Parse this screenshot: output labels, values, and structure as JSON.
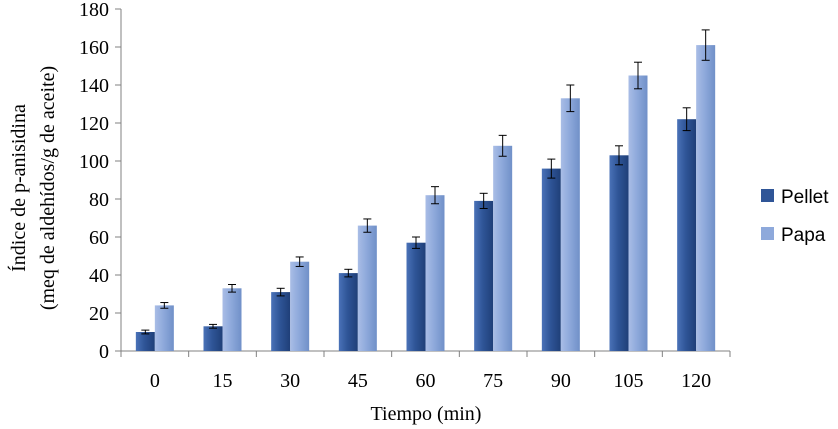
{
  "chart_data": {
    "type": "bar",
    "xlabel": "Tiempo (min)",
    "ylabel_line1": "Índice de p-anisidina",
    "ylabel_line2": "(meq de aldehídos/g de aceite)",
    "ylim": [
      0,
      180
    ],
    "yticks": [
      0,
      20,
      40,
      60,
      80,
      100,
      120,
      140,
      160,
      180
    ],
    "categories": [
      "0",
      "15",
      "30",
      "45",
      "60",
      "75",
      "90",
      "105",
      "120"
    ],
    "legend_position": "right",
    "grid": false,
    "error_bars": true,
    "series": [
      {
        "name": "Pellet",
        "color": "#2f5597",
        "values": [
          10,
          13,
          31,
          41,
          57,
          79,
          96,
          103,
          122
        ],
        "errors": [
          1,
          1,
          2,
          2,
          3,
          4,
          5,
          5,
          6
        ]
      },
      {
        "name": "Papa",
        "color": "#8ea9db",
        "values": [
          24,
          33,
          47,
          66,
          82,
          108,
          133,
          145,
          161
        ],
        "errors": [
          1.5,
          2,
          2.5,
          3.5,
          4.5,
          5.5,
          7,
          7,
          8
        ]
      }
    ]
  }
}
